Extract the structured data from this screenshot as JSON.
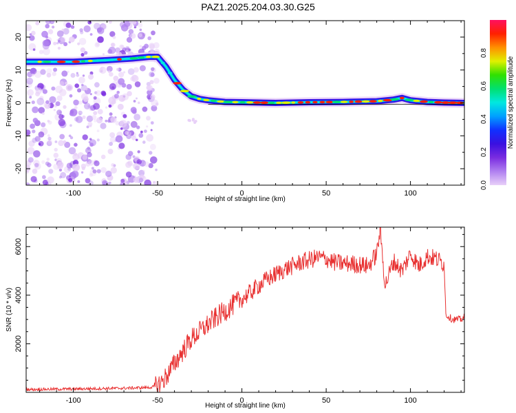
{
  "title": "PAZ1.2025.204.03.30.G25",
  "colors": {
    "snr_line": "#e83030",
    "track_outer": "#3b1fd8",
    "noise": "#a070e0",
    "colormap": [
      "#e8d0f8",
      "#b080f0",
      "#7a2ce0",
      "#3a10e0",
      "#1030ff",
      "#00a0ff",
      "#00e8e0",
      "#00e070",
      "#30e000",
      "#e0f000",
      "#ff9000",
      "#ff2000",
      "#ff1060"
    ]
  },
  "chart_data": [
    {
      "type": "heatmap",
      "name": "spectrogram",
      "xlabel": "Height of straight line (km)",
      "ylabel": "Frequency (Hz)",
      "xlim": [
        -128,
        132
      ],
      "ylim": [
        -25,
        25
      ],
      "xticks": [
        -100,
        -50,
        0,
        50,
        100
      ],
      "yticks": [
        -20,
        -10,
        0,
        10,
        20
      ],
      "ridge": {
        "x": [
          -128,
          -100,
          -80,
          -65,
          -55,
          -50,
          -45,
          -40,
          -35,
          -30,
          -25,
          -20,
          -10,
          0,
          20,
          40,
          60,
          80,
          90,
          95,
          100,
          110,
          120,
          132
        ],
        "y": [
          12.5,
          12.5,
          13,
          13.5,
          14,
          14,
          11,
          7,
          4,
          2,
          1.2,
          0.8,
          0.3,
          0.2,
          0,
          0.2,
          0.3,
          0.5,
          1,
          1.5,
          0.8,
          0.3,
          0.1,
          0
        ]
      },
      "colorbar": {
        "label": "Normalized spectral amplitude",
        "range": [
          0,
          1
        ],
        "ticks": [
          "0.0",
          "0.2",
          "0.4",
          "0.6",
          "0.8"
        ],
        "tick_values": [
          0,
          0.2,
          0.4,
          0.6,
          0.8
        ]
      }
    },
    {
      "type": "line",
      "name": "snr",
      "xlabel": "Height of straight line (km)",
      "ylabel": "SNR (10 * v/v)",
      "xlim": [
        -128,
        132
      ],
      "ylim": [
        0,
        6800
      ],
      "xticks": [
        -100,
        -50,
        0,
        50,
        100
      ],
      "yticks": [
        2000,
        4000,
        6000
      ],
      "x": [
        -128,
        -110,
        -90,
        -70,
        -55,
        -50,
        -46,
        -42,
        -38,
        -34,
        -30,
        -25,
        -20,
        -15,
        -10,
        -5,
        0,
        5,
        10,
        15,
        20,
        25,
        30,
        35,
        40,
        45,
        50,
        55,
        60,
        65,
        70,
        75,
        80,
        82,
        85,
        90,
        95,
        100,
        105,
        110,
        115,
        120,
        121,
        125,
        130,
        132
      ],
      "y": [
        120,
        130,
        150,
        170,
        200,
        260,
        550,
        950,
        1400,
        1800,
        2200,
        2500,
        2800,
        3100,
        3350,
        3600,
        3850,
        4100,
        4400,
        4650,
        4850,
        5050,
        5200,
        5350,
        5450,
        5550,
        5500,
        5350,
        5300,
        5300,
        5250,
        5200,
        5700,
        6700,
        4400,
        5400,
        5000,
        5700,
        5200,
        5600,
        5500,
        5300,
        3200,
        3000,
        3000,
        3100
      ]
    }
  ]
}
